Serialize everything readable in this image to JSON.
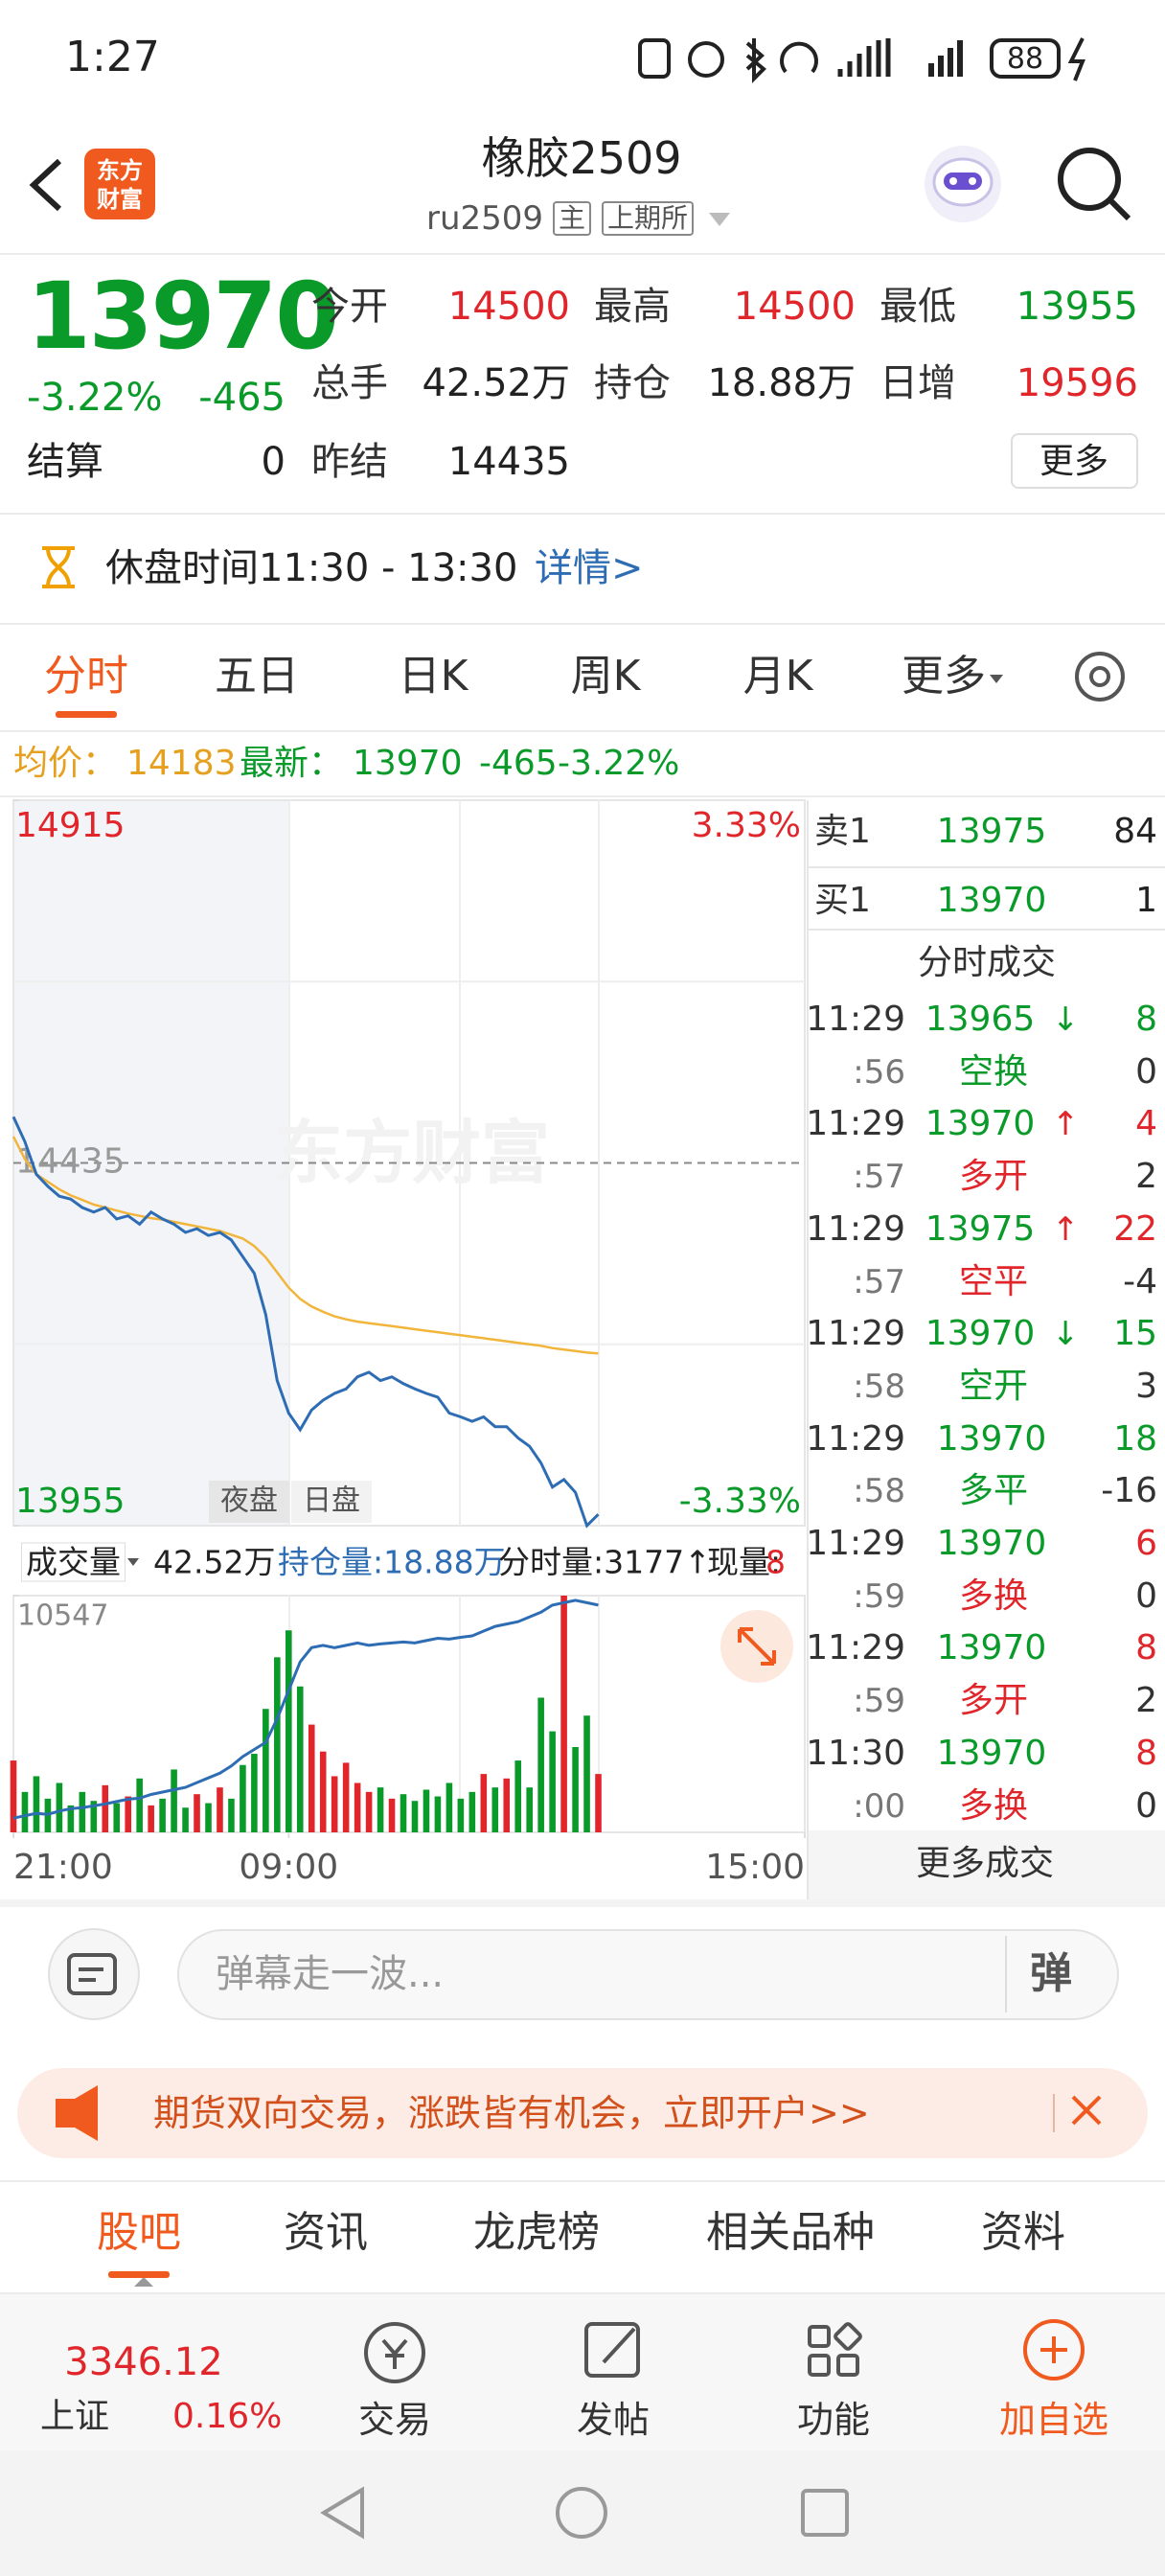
{
  "status": {
    "time": "1:27",
    "battery": "88"
  },
  "header": {
    "logo": [
      "东方",
      "财富"
    ],
    "title": "橡胶2509",
    "code": "ru2509",
    "tags": [
      "主",
      "上期所"
    ]
  },
  "quote": {
    "price": 13970,
    "change_pct": "-3.22%",
    "change": -465,
    "settle_label": "结算",
    "settle": 0,
    "stats": [
      {
        "label": "今开",
        "value": 14500
      },
      {
        "label": "最高",
        "value": 14500
      },
      {
        "label": "最低",
        "value": 13955
      },
      {
        "label": "总手",
        "value": "42.52万"
      },
      {
        "label": "持仓",
        "value": "18.88万"
      },
      {
        "label": "日增",
        "value": 19596
      },
      {
        "label": "昨结",
        "value": 14435
      }
    ],
    "more": "更多"
  },
  "notice": {
    "text": "休盘时间11:30 - 13:30",
    "link": "详情>"
  },
  "tabs": [
    "分时",
    "五日",
    "日K",
    "周K",
    "月K",
    "更多"
  ],
  "summary": {
    "avg_label": "均价：",
    "avg": 14183,
    "last_label": "最新：",
    "last": 13970,
    "change": -465,
    "change_pct": "-3.22%"
  },
  "chart_data": [
    {
      "type": "line",
      "watermark": "东方财富",
      "session_labels": [
        "夜盘",
        "日盘"
      ],
      "x": [
        0,
        5,
        10,
        15,
        20,
        25,
        30,
        35,
        40,
        45,
        50,
        55,
        60,
        65,
        70,
        75,
        80,
        85,
        90,
        95,
        100,
        105,
        110,
        115,
        120,
        125,
        130,
        135,
        140,
        145,
        150,
        155,
        160,
        165,
        170,
        175,
        180,
        185,
        190,
        195,
        200,
        205,
        210,
        215,
        220,
        225,
        230,
        235,
        240,
        245,
        250,
        255
      ],
      "xlim": [
        0,
        345
      ],
      "ylim": [
        13955,
        14915
      ],
      "yticks": [
        13955,
        14435,
        14915
      ],
      "y_pct_labels": [
        "-3.33%",
        "3.33%"
      ],
      "series": [
        {
          "color": "#2e6db4",
          "values": [
            14496,
            14463,
            14420,
            14404,
            14391,
            14387,
            14376,
            14370,
            14376,
            14361,
            14365,
            14354,
            14370,
            14361,
            14354,
            14343,
            14348,
            14339,
            14343,
            14333,
            14311,
            14289,
            14234,
            14147,
            14104,
            14082,
            14108,
            14121,
            14130,
            14136,
            14152,
            14158,
            14147,
            14152,
            14143,
            14136,
            14130,
            14125,
            14104,
            14099,
            14093,
            14099,
            14086,
            14086,
            14071,
            14060,
            14038,
            14006,
            14016,
            13999,
            13955,
            13970
          ]
        },
        {
          "color": "#f2b53c",
          "values": [
            14470,
            14440,
            14420,
            14410,
            14400,
            14392,
            14386,
            14380,
            14376,
            14372,
            14368,
            14365,
            14362,
            14360,
            14357,
            14354,
            14351,
            14348,
            14345,
            14340,
            14335,
            14325,
            14310,
            14290,
            14270,
            14255,
            14245,
            14238,
            14232,
            14228,
            14225,
            14223,
            14221,
            14219,
            14217,
            14215,
            14213,
            14211,
            14209,
            14207,
            14205,
            14203,
            14201,
            14199,
            14197,
            14195,
            14193,
            14190,
            14188,
            14186,
            14184,
            14183
          ]
        }
      ]
    },
    {
      "type": "bar",
      "x": [
        0,
        5,
        10,
        15,
        20,
        25,
        30,
        35,
        40,
        45,
        50,
        55,
        60,
        65,
        70,
        75,
        80,
        85,
        90,
        95,
        100,
        105,
        110,
        115,
        120,
        125,
        130,
        135,
        140,
        145,
        150,
        155,
        160,
        165,
        170,
        175,
        180,
        185,
        190,
        195,
        200,
        205,
        210,
        215,
        220,
        225,
        230,
        235,
        240,
        245,
        250,
        255
      ],
      "xlim": [
        0,
        345
      ],
      "xticks": [
        {
          "value": 0,
          "label": "21:00"
        },
        {
          "value": 120,
          "label": "09:00"
        },
        {
          "value": 345,
          "label": "15:00"
        }
      ],
      "ylim": [
        0,
        10547
      ],
      "yticks": [
        10547
      ],
      "up_color": "#e0262b",
      "down_color": "#0a9a2a",
      "values": [
        3200,
        1800,
        2500,
        1500,
        2200,
        1200,
        1800,
        1400,
        2100,
        1300,
        1600,
        2400,
        1200,
        1500,
        2800,
        1100,
        1700,
        1300,
        2000,
        1500,
        3000,
        3500,
        5500,
        7800,
        9000,
        6500,
        4800,
        3600,
        2500,
        3100,
        2200,
        1800,
        2000,
        1500,
        1700,
        1400,
        1900,
        1600,
        2200,
        1500,
        1800,
        2600,
        2000,
        2400,
        3200,
        2000,
        6000,
        4500,
        10547,
        3800,
        5200,
        2600
      ],
      "y2lim": [
        184000,
        189000
      ],
      "series": [
        {
          "axis": "y2",
          "color": "#2e6db4",
          "values": [
            184300,
            184350,
            184400,
            184380,
            184450,
            184500,
            184520,
            184560,
            184600,
            184650,
            184700,
            184720,
            184800,
            184850,
            184900,
            184950,
            185050,
            185150,
            185250,
            185400,
            185600,
            185750,
            185900,
            186400,
            187000,
            187600,
            187900,
            187950,
            187900,
            187950,
            188000,
            187950,
            187980,
            188000,
            188020,
            188000,
            188050,
            188100,
            188080,
            188120,
            188150,
            188250,
            188350,
            188400,
            188450,
            188550,
            188650,
            188800,
            188850,
            188900,
            188850,
            188800
          ]
        }
      ]
    }
  ],
  "volume_bar": {
    "label": "成交量",
    "volume": "42.52万",
    "oi": "持仓量:18.88万",
    "tick_vol": "分时量:3177↑",
    "cur_vol_label": "现量:",
    "cur_vol": 8
  },
  "orderbook": [
    {
      "label": "卖1",
      "price": 13975,
      "qty": 84
    },
    {
      "label": "买1",
      "price": 13970,
      "qty": 1
    }
  ],
  "trades_title": "分时成交",
  "trades": [
    {
      "time": "11:29",
      "price": 13965,
      "arrow": "↓",
      "qty": 8,
      "sec": ":56",
      "kind": "空换",
      "delta": 0,
      "color": "#0a9a2a"
    },
    {
      "time": "11:29",
      "price": 13970,
      "arrow": "↑",
      "qty": 4,
      "sec": ":57",
      "kind": "多开",
      "delta": 2,
      "color": "#e0262b"
    },
    {
      "time": "11:29",
      "price": 13975,
      "arrow": "↑",
      "qty": 22,
      "sec": ":57",
      "kind": "空平",
      "delta": -4,
      "color": "#e0262b"
    },
    {
      "time": "11:29",
      "price": 13970,
      "arrow": "↓",
      "qty": 15,
      "sec": ":58",
      "kind": "空开",
      "delta": 3,
      "color": "#0a9a2a"
    },
    {
      "time": "11:29",
      "price": 13970,
      "qty": 18,
      "sec": ":58",
      "kind": "多平",
      "delta": -16,
      "color": "#0a9a2a"
    },
    {
      "time": "11:29",
      "price": 13970,
      "qty": 6,
      "sec": ":59",
      "kind": "多换",
      "delta": 0,
      "color": "#e0262b"
    },
    {
      "time": "11:29",
      "price": 13970,
      "qty": 8,
      "sec": ":59",
      "kind": "多开",
      "delta": 2,
      "color": "#e0262b"
    },
    {
      "time": "11:30",
      "price": 13970,
      "qty": 8,
      "sec": ":00",
      "kind": "多换",
      "delta": 0,
      "color": "#e0262b"
    }
  ],
  "trades_more": "更多成交",
  "comment_placeholder": "弹幕走一波...",
  "comment_button": "弹",
  "ad": "期货双向交易，涨跌皆有机会，立即开户>>",
  "bottom_tabs": [
    "股吧",
    "资讯",
    "龙虎榜",
    "相关品种",
    "资料"
  ],
  "index": {
    "value": 3346.12,
    "name": "上证",
    "change_pct": "0.16%"
  },
  "nav": [
    "交易",
    "发帖",
    "功能",
    "加自选"
  ]
}
